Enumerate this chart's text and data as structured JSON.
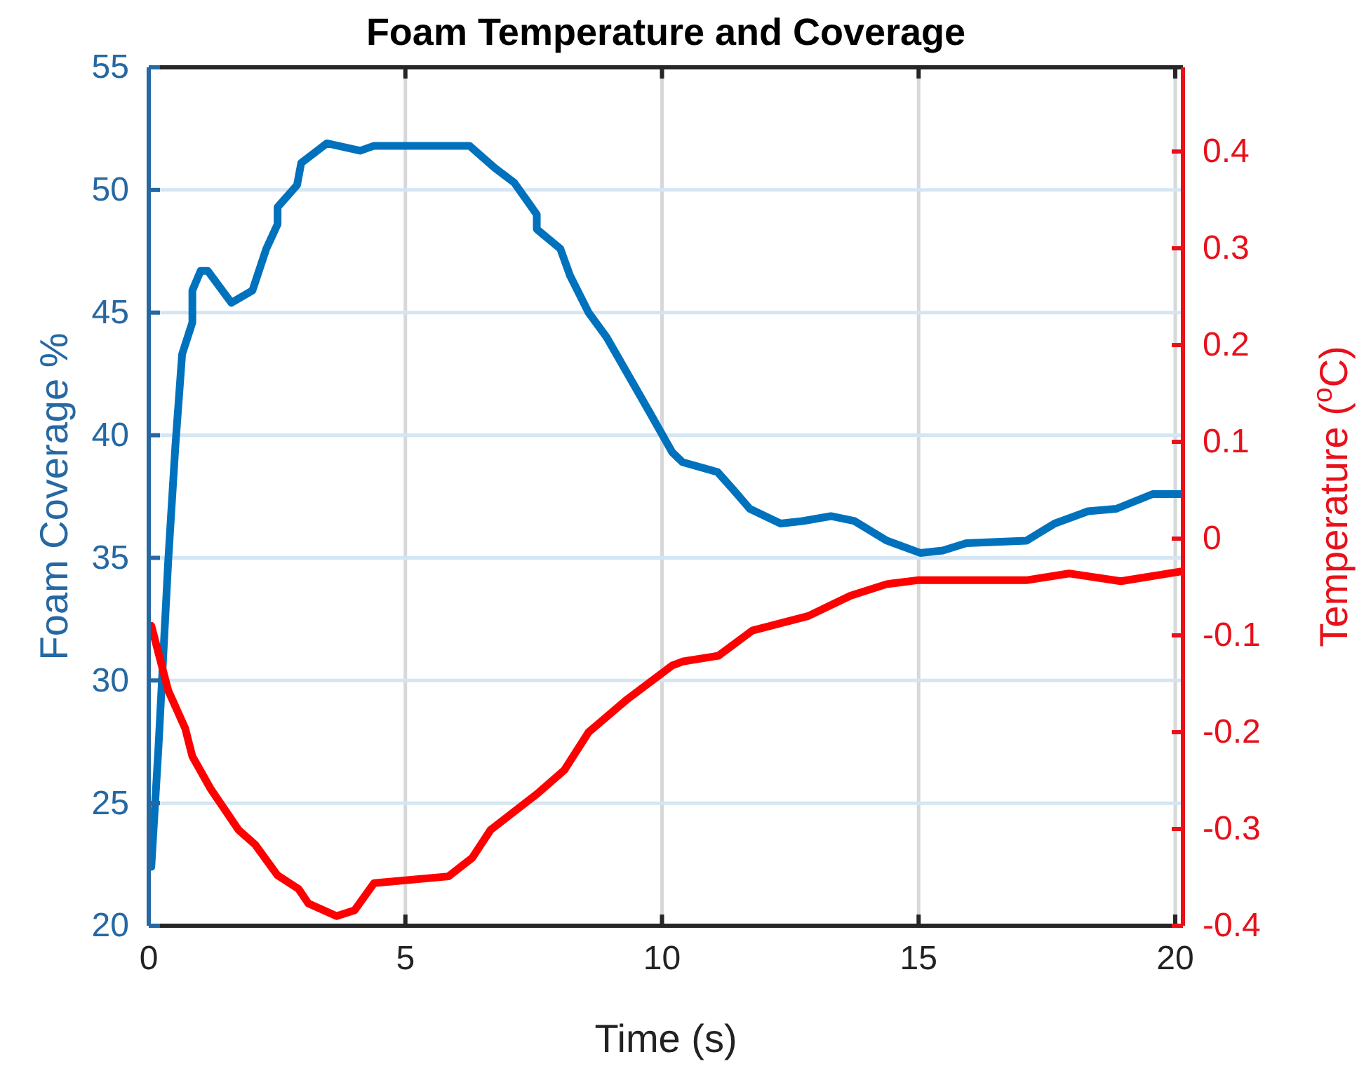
{
  "chart_data": {
    "type": "line",
    "title": "Foam Temperature and Coverage",
    "xlabel": "Time (s)",
    "ylabel": "Foam Coverage %",
    "y2label": "Temperature ($^{o}$C)",
    "xlim": [
      0,
      20.15
    ],
    "xticks": [
      0,
      5,
      10,
      15,
      20
    ],
    "ylim": [
      20,
      55
    ],
    "yticks": [
      20,
      25,
      30,
      35,
      40,
      45,
      50,
      55
    ],
    "y2lim": [
      -0.4,
      0.487
    ],
    "y2ticks": [
      -0.4,
      -0.3,
      -0.2,
      -0.1,
      0,
      0.1,
      0.2,
      0.3,
      0.4
    ],
    "grid": true,
    "line_style": "solid",
    "series": [
      {
        "color": "#0072bd",
        "x": [
          0.05,
          0.19,
          0.38,
          0.52,
          0.65,
          0.85,
          0.85,
          1.01,
          1.15,
          1.61,
          2.02,
          2.29,
          2.51,
          2.51,
          2.89,
          2.97,
          3.47,
          4.12,
          4.39,
          6.25,
          6.74,
          7.12,
          7.56,
          7.56,
          8.02,
          8.21,
          8.57,
          8.92,
          9.74,
          10.2,
          10.4,
          11.08,
          11.38,
          11.71,
          12.31,
          12.74,
          13.29,
          13.75,
          14.38,
          15.03,
          15.47,
          15.93,
          17.1,
          17.65,
          18.3,
          18.85,
          19.56,
          20.11
        ],
        "values": [
          22.4,
          27.3,
          34.9,
          39.6,
          43.3,
          44.6,
          45.9,
          46.7,
          46.7,
          45.4,
          45.9,
          47.6,
          48.6,
          49.3,
          50.2,
          51.1,
          51.9,
          51.6,
          51.8,
          51.8,
          50.9,
          50.3,
          49.0,
          48.4,
          47.6,
          46.5,
          45.0,
          44.0,
          41.0,
          39.3,
          38.9,
          38.5,
          37.8,
          37.0,
          36.4,
          36.5,
          36.7,
          36.5,
          35.7,
          35.2,
          35.3,
          35.6,
          35.7,
          36.4,
          36.9,
          37.0,
          37.6,
          37.6
        ]
      },
      {
        "color": "#ff0000",
        "axis": "y2",
        "x": [
          0.05,
          0.38,
          0.71,
          0.85,
          1.2,
          1.75,
          2.07,
          2.51,
          2.92,
          3.11,
          3.66,
          4.01,
          4.39,
          5.84,
          6.3,
          6.66,
          7.56,
          8.1,
          8.57,
          9.3,
          10.2,
          10.4,
          11.1,
          11.76,
          12.85,
          13.67,
          14.38,
          14.98,
          17.1,
          17.93,
          18.94,
          20.11
        ],
        "values": [
          -0.09,
          -0.157,
          -0.196,
          -0.225,
          -0.258,
          -0.301,
          -0.316,
          -0.348,
          -0.362,
          -0.377,
          -0.39,
          -0.384,
          -0.356,
          -0.349,
          -0.33,
          -0.301,
          -0.264,
          -0.239,
          -0.2,
          -0.167,
          -0.131,
          -0.127,
          -0.121,
          -0.095,
          -0.08,
          -0.059,
          -0.047,
          -0.043,
          -0.043,
          -0.036,
          -0.044,
          -0.034
        ]
      }
    ]
  }
}
